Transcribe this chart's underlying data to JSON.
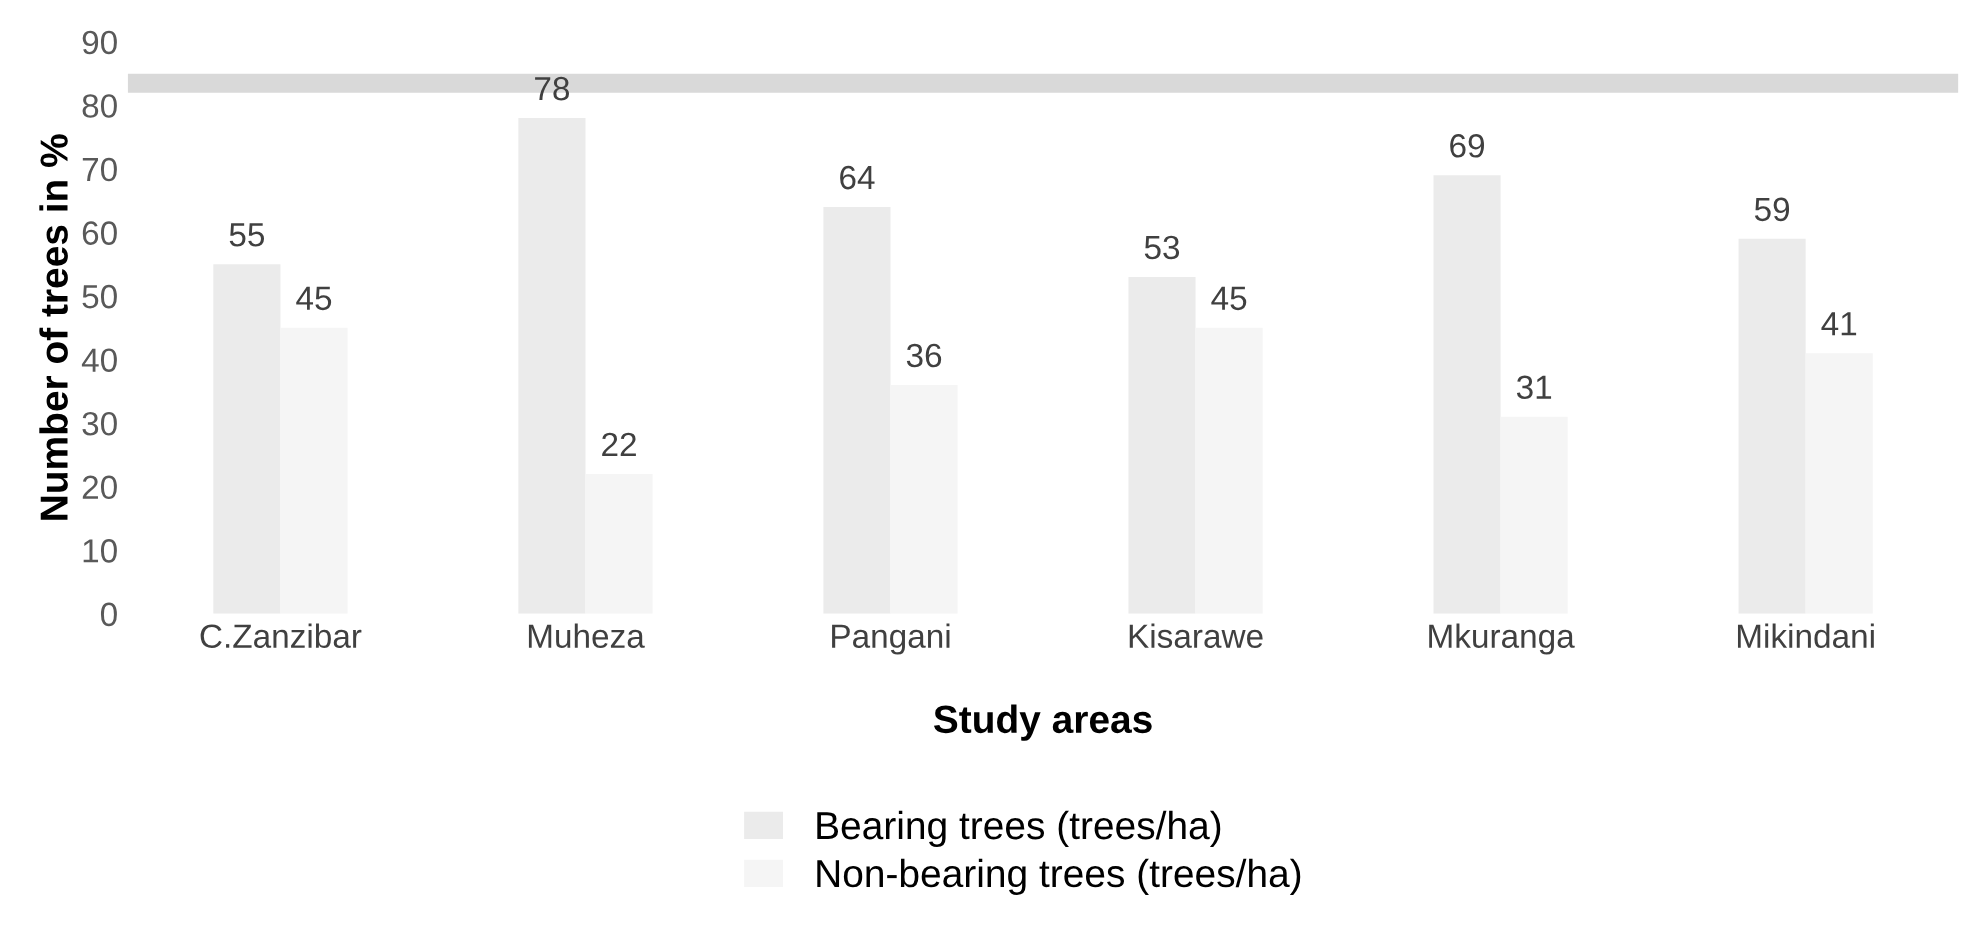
{
  "chart_data": {
    "type": "bar",
    "xlabel": "Study areas",
    "ylabel": "Number of trees in %",
    "categories": [
      "C.Zanzibar",
      "Muheza",
      "Pangani",
      "Kisarawe",
      "Mkuranga",
      "Mikindani"
    ],
    "series": [
      {
        "name": "Bearing trees (trees/ha)",
        "color": "#ebebeb",
        "values": [
          55,
          78,
          64,
          53,
          69,
          59
        ]
      },
      {
        "name": "Non-bearing trees (trees/ha)",
        "color": "#f5f5f5",
        "values": [
          45,
          22,
          36,
          45,
          31,
          41
        ]
      }
    ],
    "ylim": [
      0,
      90
    ],
    "yticks": [
      0,
      10,
      20,
      30,
      40,
      50,
      60,
      70,
      80,
      90
    ],
    "bands": [
      {
        "axis": "y",
        "from": 82,
        "to": 85,
        "color": "#d9d9d9"
      }
    ],
    "data_labels": true,
    "legend": "bottom",
    "grid": false
  }
}
